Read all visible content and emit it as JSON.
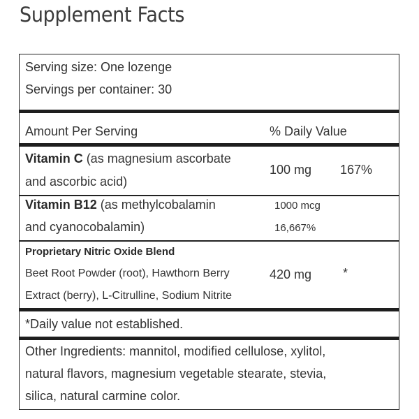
{
  "title": "Supplement Facts",
  "serving": {
    "size": "Serving size: One lozenge",
    "per_container": "Servings per container: 30"
  },
  "header": {
    "amount_per_serving": "Amount Per Serving",
    "daily_value": "% Daily Value"
  },
  "vitamin_c": {
    "name": "Vitamin C",
    "desc_line1": " (as magnesium ascorbate",
    "desc_line2": "and ascorbic acid)",
    "amount": "100 mg",
    "dv": "167%"
  },
  "vitamin_b12": {
    "name": "Vitamin B12",
    "desc_line1": " (as methylcobalamin",
    "desc_line2": "and cyanocobalamin)",
    "amount": "1000 mcg",
    "dv": "16,667%"
  },
  "blend": {
    "name": "Proprietary Nitric Oxide Blend",
    "line1": "Beet Root Powder (root), Hawthorn Berry",
    "line2": "Extract (berry), L-Citrulline, Sodium Nitrite",
    "amount": "420 mg",
    "dv": "*"
  },
  "footnote": "*Daily value not established.",
  "other_ingredients": {
    "line1": "Other Ingredients: mannitol, modified cellulose, xylitol,",
    "line2": "natural flavors, magnesium vegetable stearate, stevia,",
    "line3": "silica, natural carmine color."
  }
}
